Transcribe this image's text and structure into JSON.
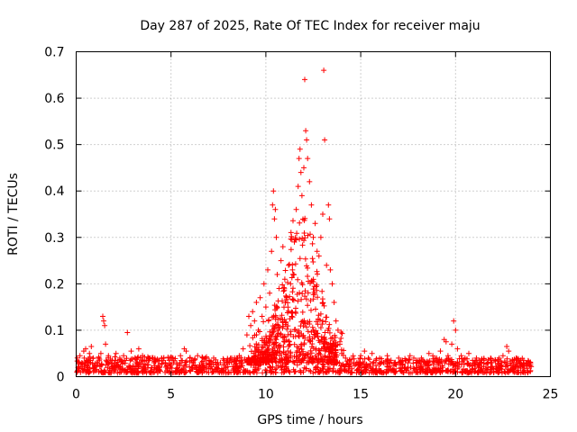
{
  "chart_data": {
    "type": "scatter",
    "title": "Day 287 of 2025, Rate Of TEC Index for receiver maju",
    "xlabel": "GPS time / hours",
    "ylabel": "ROTI / TECUs",
    "xlim": [
      0,
      25
    ],
    "ylim": [
      0,
      0.7
    ],
    "xticks": [
      "0",
      "5",
      "10",
      "15",
      "20",
      "25"
    ],
    "yticks": [
      "0",
      "0.1",
      "0.2",
      "0.3",
      "0.4",
      "0.5",
      "0.6",
      "0.7"
    ],
    "grid": true,
    "marker": "+",
    "color": "#ff0000",
    "series": [
      {
        "name": "ROTI",
        "points": [
          [
            0.1,
            0.02
          ],
          [
            0.2,
            0.045
          ],
          [
            0.3,
            0.03
          ],
          [
            0.4,
            0.055
          ],
          [
            0.5,
            0.06
          ],
          [
            0.6,
            0.035
          ],
          [
            0.7,
            0.05
          ],
          [
            0.8,
            0.065
          ],
          [
            0.9,
            0.04
          ],
          [
            1.0,
            0.025
          ],
          [
            1.1,
            0.03
          ],
          [
            1.2,
            0.04
          ],
          [
            1.3,
            0.05
          ],
          [
            1.4,
            0.13
          ],
          [
            1.45,
            0.12
          ],
          [
            1.5,
            0.11
          ],
          [
            1.55,
            0.07
          ],
          [
            1.7,
            0.045
          ],
          [
            1.9,
            0.035
          ],
          [
            2.1,
            0.05
          ],
          [
            2.3,
            0.04
          ],
          [
            2.5,
            0.045
          ],
          [
            2.7,
            0.095
          ],
          [
            2.9,
            0.055
          ],
          [
            3.1,
            0.04
          ],
          [
            3.3,
            0.06
          ],
          [
            3.5,
            0.045
          ],
          [
            3.7,
            0.035
          ],
          [
            3.9,
            0.04
          ],
          [
            4.1,
            0.03
          ],
          [
            4.3,
            0.035
          ],
          [
            4.5,
            0.04
          ],
          [
            4.7,
            0.03
          ],
          [
            4.9,
            0.035
          ],
          [
            5.1,
            0.04
          ],
          [
            5.3,
            0.03
          ],
          [
            5.5,
            0.045
          ],
          [
            5.7,
            0.06
          ],
          [
            5.8,
            0.055
          ],
          [
            6.0,
            0.04
          ],
          [
            6.2,
            0.035
          ],
          [
            6.4,
            0.045
          ],
          [
            6.6,
            0.03
          ],
          [
            6.8,
            0.04
          ],
          [
            7.0,
            0.025
          ],
          [
            7.2,
            0.03
          ],
          [
            7.4,
            0.025
          ],
          [
            7.6,
            0.03
          ],
          [
            7.8,
            0.035
          ],
          [
            8.0,
            0.03
          ],
          [
            8.2,
            0.04
          ],
          [
            8.4,
            0.035
          ],
          [
            8.6,
            0.045
          ],
          [
            8.8,
            0.06
          ],
          [
            9.0,
            0.09
          ],
          [
            9.1,
            0.13
          ],
          [
            9.2,
            0.11
          ],
          [
            9.3,
            0.14
          ],
          [
            9.4,
            0.12
          ],
          [
            9.5,
            0.16
          ],
          [
            9.6,
            0.1
          ],
          [
            9.7,
            0.17
          ],
          [
            9.8,
            0.13
          ],
          [
            9.9,
            0.2
          ],
          [
            10.0,
            0.15
          ],
          [
            10.1,
            0.23
          ],
          [
            10.2,
            0.18
          ],
          [
            10.3,
            0.27
          ],
          [
            10.35,
            0.37
          ],
          [
            10.4,
            0.4
          ],
          [
            10.45,
            0.34
          ],
          [
            10.5,
            0.36
          ],
          [
            10.55,
            0.3
          ],
          [
            10.6,
            0.22
          ],
          [
            10.7,
            0.19
          ],
          [
            10.8,
            0.25
          ],
          [
            10.9,
            0.28
          ],
          [
            11.0,
            0.21
          ],
          [
            11.1,
            0.17
          ],
          [
            11.2,
            0.24
          ],
          [
            11.3,
            0.2
          ],
          [
            11.4,
            0.23
          ],
          [
            11.5,
            0.29
          ],
          [
            11.6,
            0.36
          ],
          [
            11.7,
            0.41
          ],
          [
            11.75,
            0.47
          ],
          [
            11.8,
            0.49
          ],
          [
            11.85,
            0.44
          ],
          [
            11.9,
            0.39
          ],
          [
            12.0,
            0.45
          ],
          [
            12.05,
            0.64
          ],
          [
            12.1,
            0.53
          ],
          [
            12.15,
            0.51
          ],
          [
            12.2,
            0.47
          ],
          [
            12.3,
            0.42
          ],
          [
            12.4,
            0.37
          ],
          [
            12.5,
            0.3
          ],
          [
            12.6,
            0.33
          ],
          [
            12.7,
            0.27
          ],
          [
            12.8,
            0.26
          ],
          [
            12.9,
            0.3
          ],
          [
            13.0,
            0.35
          ],
          [
            13.05,
            0.66
          ],
          [
            13.1,
            0.51
          ],
          [
            13.2,
            0.24
          ],
          [
            13.3,
            0.37
          ],
          [
            13.35,
            0.34
          ],
          [
            13.4,
            0.23
          ],
          [
            13.5,
            0.2
          ],
          [
            13.6,
            0.16
          ],
          [
            13.7,
            0.12
          ],
          [
            13.8,
            0.1
          ],
          [
            13.9,
            0.07
          ],
          [
            14.0,
            0.05
          ],
          [
            14.2,
            0.04
          ],
          [
            14.4,
            0.035
          ],
          [
            14.6,
            0.045
          ],
          [
            14.8,
            0.03
          ],
          [
            15.0,
            0.045
          ],
          [
            15.2,
            0.055
          ],
          [
            15.4,
            0.04
          ],
          [
            15.6,
            0.05
          ],
          [
            15.8,
            0.035
          ],
          [
            16.0,
            0.04
          ],
          [
            16.2,
            0.03
          ],
          [
            16.4,
            0.045
          ],
          [
            16.6,
            0.035
          ],
          [
            16.8,
            0.03
          ],
          [
            17.0,
            0.04
          ],
          [
            17.2,
            0.025
          ],
          [
            17.4,
            0.035
          ],
          [
            17.6,
            0.045
          ],
          [
            17.8,
            0.04
          ],
          [
            18.0,
            0.035
          ],
          [
            18.2,
            0.04
          ],
          [
            18.4,
            0.03
          ],
          [
            18.6,
            0.05
          ],
          [
            18.8,
            0.045
          ],
          [
            19.0,
            0.04
          ],
          [
            19.2,
            0.055
          ],
          [
            19.4,
            0.08
          ],
          [
            19.5,
            0.075
          ],
          [
            19.6,
            0.045
          ],
          [
            19.8,
            0.07
          ],
          [
            19.9,
            0.12
          ],
          [
            20.0,
            0.1
          ],
          [
            20.1,
            0.06
          ],
          [
            20.3,
            0.045
          ],
          [
            20.5,
            0.04
          ],
          [
            20.7,
            0.05
          ],
          [
            20.9,
            0.035
          ],
          [
            21.1,
            0.04
          ],
          [
            21.3,
            0.03
          ],
          [
            21.5,
            0.035
          ],
          [
            21.7,
            0.02
          ],
          [
            21.9,
            0.03
          ],
          [
            22.1,
            0.035
          ],
          [
            22.3,
            0.04
          ],
          [
            22.5,
            0.045
          ],
          [
            22.7,
            0.065
          ],
          [
            22.8,
            0.055
          ],
          [
            23.0,
            0.035
          ],
          [
            23.2,
            0.04
          ],
          [
            23.4,
            0.03
          ],
          [
            23.6,
            0.035
          ],
          [
            23.8,
            0.03
          ],
          [
            23.95,
            0.025
          ]
        ]
      }
    ],
    "band_description": "dense low-level scatter across all hours with a storm of higher values between about 9 and 14 hours"
  }
}
